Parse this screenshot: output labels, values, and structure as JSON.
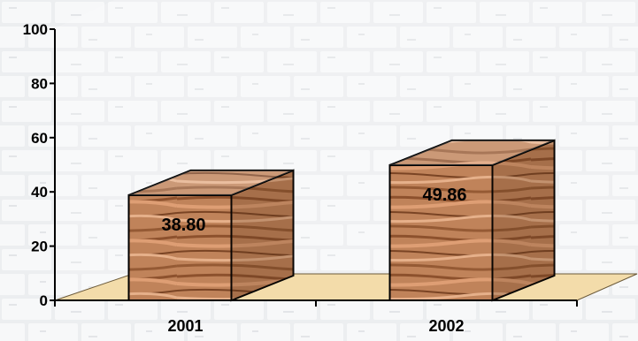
{
  "chart_data": {
    "type": "bar",
    "categories": [
      "2001",
      "2002"
    ],
    "values": [
      38.8,
      49.86
    ],
    "value_labels": [
      "38.80",
      "49.86"
    ],
    "ylim": [
      0,
      100
    ],
    "yticks": [
      0,
      20,
      40,
      60,
      80,
      100
    ],
    "ytick_labels": [
      "0",
      "20",
      "40",
      "60",
      "80",
      "100"
    ],
    "title": "",
    "xlabel": "",
    "ylabel": "",
    "grid": false,
    "legend": "none",
    "style": "3d-box",
    "bar_texture": "wood",
    "background": "white-brick-wall",
    "floor_color": "#f3dcaa"
  }
}
